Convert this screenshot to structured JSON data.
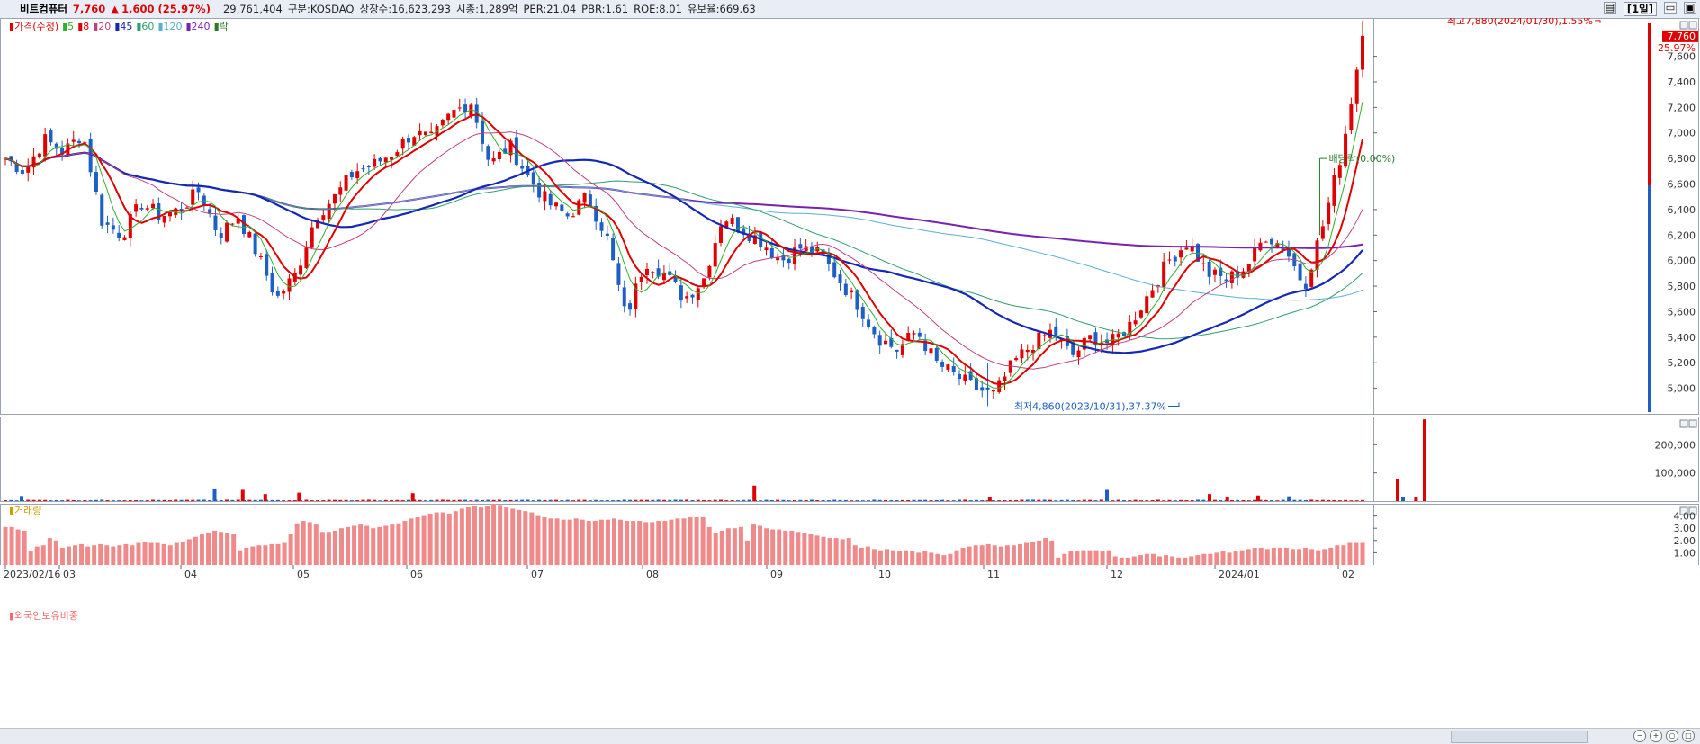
{
  "header": {
    "name": "비트컴퓨터",
    "price": "7,760",
    "change_icon": "up-triangle-icon",
    "change": "1,600 (25.97%)",
    "volume": "29,761,404",
    "market": "구분:KOSDAQ",
    "shares": "상장수:16,623,293",
    "cap": "시총:1,289억",
    "per": "PER:21.04",
    "pbr": "PBR:1.61",
    "roe": "ROE:8.01",
    "float": "유보율:669.63",
    "interval_button": "[1일]"
  },
  "colors": {
    "up": "#e00000",
    "down": "#1d5fc4",
    "ma5": "#2fae2f",
    "ma8": "#e00000",
    "ma20": "#c04080",
    "ma45": "#1428b4",
    "ma60": "#2f9e6e",
    "ma120": "#5aaed0",
    "ma240": "#7a22b0",
    "foreign": "#f08a8a"
  },
  "legend_price": [
    {
      "label": "가격(수정)",
      "color": "#e00000"
    },
    {
      "label": "5",
      "color": "#2fae2f"
    },
    {
      "label": "8",
      "color": "#e00000"
    },
    {
      "label": "20",
      "color": "#c04080"
    },
    {
      "label": "45",
      "color": "#1428b4"
    },
    {
      "label": "60",
      "color": "#2f9e6e"
    },
    {
      "label": "120",
      "color": "#5aaed0"
    },
    {
      "label": "240",
      "color": "#7a22b0"
    },
    {
      "label": "락",
      "color": "#2a7a2a"
    }
  ],
  "legend_volume": "거래량",
  "legend_foreign": "외국인보유비중",
  "annotations": {
    "high": "최고7,880(2024/01/30),1.55%",
    "low": "최저4,860(2023/10/31),37.37%",
    "dividend": "배당락(0.00%)",
    "last_price": "7,760",
    "last_pct": "25.97%"
  },
  "chart_data": [
    {
      "type": "candlestick",
      "title": "가격(수정)",
      "x": [
        "2023/02/16",
        "03",
        "04",
        "05",
        "06",
        "07",
        "08",
        "09",
        "10",
        "11",
        "12",
        "2024/01",
        "02"
      ],
      "ylim": [
        4800,
        7900
      ],
      "y_ticks": [
        "5,000",
        "5,200",
        "5,400",
        "5,600",
        "5,800",
        "6,000",
        "6,200",
        "6,400",
        "6,600",
        "6,800",
        "7,000",
        "7,200",
        "7,400",
        "7,600"
      ],
      "y_tick_values": [
        5000,
        5200,
        5400,
        5600,
        5800,
        6000,
        6200,
        6400,
        6600,
        6800,
        7000,
        7200,
        7400,
        7600
      ],
      "close_path": [
        6800,
        6700,
        6950,
        6850,
        7000,
        6300,
        6200,
        6450,
        6350,
        6400,
        6550,
        6200,
        6350,
        6050,
        5700,
        5900,
        6350,
        6500,
        6700,
        6750,
        6850,
        7000,
        6950,
        7150,
        7250,
        6750,
        6900,
        6650,
        6450,
        6350,
        6500,
        6200,
        5550,
        6000,
        5900,
        5700,
        5850,
        6350,
        6250,
        6150,
        6000,
        6100,
        6050,
        5850,
        5650,
        5400,
        5300,
        5450,
        5200,
        5100,
        5000,
        4950,
        5200,
        5350,
        5450,
        5250,
        5400,
        5350,
        5500,
        5750,
        6000,
        6150,
        5900,
        5850,
        5950,
        6200,
        6100,
        5800,
        6300,
        6900,
        7760
      ],
      "high": 7880,
      "low": 4860,
      "last": 7760
    },
    {
      "type": "bar",
      "title": "거래량",
      "ylim": [
        0,
        300000
      ],
      "y_ticks": [
        "100,000",
        "200,000"
      ],
      "y_tick_values": [
        100000,
        200000
      ],
      "spikes": [
        {
          "m": 0.3,
          "v": 18000,
          "up": false
        },
        {
          "m": 2.3,
          "v": 45000,
          "up": false
        },
        {
          "m": 2.55,
          "v": 40000,
          "up": true
        },
        {
          "m": 2.75,
          "v": 25000,
          "up": true
        },
        {
          "m": 3.05,
          "v": 30000,
          "up": true
        },
        {
          "m": 4.05,
          "v": 28000,
          "up": true
        },
        {
          "m": 6.9,
          "v": 55000,
          "up": true
        },
        {
          "m": 9.05,
          "v": 14000,
          "up": true
        },
        {
          "m": 10.0,
          "v": 40000,
          "up": false
        },
        {
          "m": 10.95,
          "v": 25000,
          "up": true
        },
        {
          "m": 11.1,
          "v": 14000,
          "up": true
        },
        {
          "m": 11.35,
          "v": 20000,
          "up": true
        },
        {
          "m": 11.6,
          "v": 17000,
          "up": false
        },
        {
          "m": 13.55,
          "v": 80000,
          "up": true
        },
        {
          "m": 13.6,
          "v": 15000,
          "up": false
        },
        {
          "m": 13.72,
          "v": 16000,
          "up": true
        },
        {
          "m": 13.8,
          "v": 290000,
          "up": true
        }
      ]
    },
    {
      "type": "bar",
      "title": "외국인보유비중",
      "ylim": [
        0,
        5
      ],
      "y_ticks": [
        "1.00",
        "2.00",
        "3.00",
        "4.00"
      ],
      "y_tick_values": [
        1,
        2,
        3,
        4
      ],
      "values": [
        3.1,
        3.1,
        2.9,
        2.8,
        1.1,
        1.5,
        1.6,
        2.2,
        2.0,
        1.4,
        1.5,
        1.6,
        1.7,
        1.5,
        1.6,
        1.7,
        1.6,
        1.5,
        1.6,
        1.7,
        1.6,
        1.8,
        1.9,
        1.8,
        1.8,
        1.7,
        1.6,
        1.8,
        1.9,
        2.1,
        2.3,
        2.5,
        2.6,
        2.8,
        2.7,
        2.6,
        2.5,
        1.2,
        1.4,
        1.5,
        1.6,
        1.6,
        1.7,
        1.7,
        1.8,
        2.5,
        3.4,
        3.6,
        3.5,
        3.3,
        2.7,
        2.7,
        2.8,
        3.0,
        3.1,
        3.2,
        3.3,
        3.2,
        3.0,
        3.1,
        3.2,
        3.3,
        3.4,
        3.6,
        3.8,
        3.9,
        4.0,
        4.2,
        4.3,
        4.3,
        4.2,
        4.4,
        4.6,
        4.7,
        4.8,
        4.7,
        4.8,
        5.0,
        4.9,
        4.7,
        4.6,
        4.5,
        4.4,
        4.3,
        4.0,
        3.9,
        3.8,
        3.8,
        3.7,
        3.7,
        3.8,
        3.7,
        3.6,
        3.6,
        3.7,
        3.7,
        3.8,
        3.7,
        3.6,
        3.6,
        3.6,
        3.5,
        3.5,
        3.6,
        3.6,
        3.7,
        3.8,
        3.8,
        3.9,
        3.9,
        3.9,
        3.1,
        2.6,
        2.8,
        3.0,
        3.0,
        3.1,
        2.0,
        3.3,
        3.2,
        3.0,
        2.9,
        2.9,
        2.8,
        2.8,
        2.7,
        2.6,
        2.5,
        2.4,
        2.3,
        2.2,
        2.2,
        2.1,
        2.2,
        1.6,
        1.4,
        1.5,
        1.3,
        1.2,
        1.3,
        1.2,
        1.1,
        1.2,
        1.1,
        1.0,
        1.1,
        1.0,
        0.9,
        0.8,
        0.9,
        1.2,
        1.4,
        1.5,
        1.6,
        1.6,
        1.7,
        1.6,
        1.5,
        1.6,
        1.6,
        1.7,
        1.8,
        1.9,
        2.0,
        2.2,
        2.0,
        0.6,
        0.9,
        1.1,
        1.1,
        1.2,
        1.2,
        1.2,
        1.1,
        1.2,
        0.7,
        0.6,
        0.6,
        0.7,
        0.8,
        0.9,
        0.9,
        0.7,
        0.8,
        0.7,
        0.6,
        0.6,
        0.7,
        0.8,
        0.9,
        0.9,
        1.0,
        1.1,
        1.0,
        1.1,
        1.2,
        1.3,
        1.4,
        1.4,
        1.3,
        1.4,
        1.4,
        1.4,
        1.3,
        1.3,
        1.4,
        1.3,
        1.2,
        1.3,
        1.4,
        1.6,
        1.6,
        1.8,
        1.8,
        1.8
      ]
    }
  ]
}
